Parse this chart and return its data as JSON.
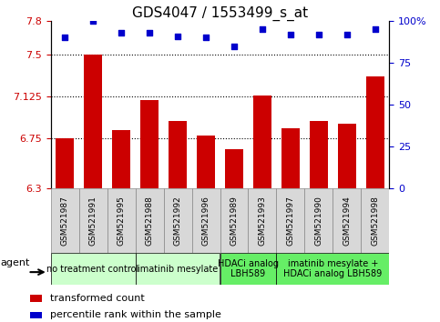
{
  "title": "GDS4047 / 1553499_s_at",
  "samples": [
    "GSM521987",
    "GSM521991",
    "GSM521995",
    "GSM521988",
    "GSM521992",
    "GSM521996",
    "GSM521989",
    "GSM521993",
    "GSM521997",
    "GSM521990",
    "GSM521994",
    "GSM521998"
  ],
  "bar_values": [
    6.75,
    7.5,
    6.82,
    7.09,
    6.9,
    6.77,
    6.65,
    7.13,
    6.84,
    6.9,
    6.88,
    7.3
  ],
  "dot_values": [
    90,
    100,
    93,
    93,
    91,
    90,
    85,
    95,
    92,
    92,
    92,
    95
  ],
  "bar_color": "#cc0000",
  "dot_color": "#0000cc",
  "ylim_left": [
    6.3,
    7.8
  ],
  "ylim_right": [
    0,
    100
  ],
  "yticks_left": [
    6.3,
    6.75,
    7.125,
    7.5,
    7.8
  ],
  "ytick_labels_left": [
    "6.3",
    "6.75",
    "7.125",
    "7.5",
    "7.8"
  ],
  "yticks_right": [
    0,
    25,
    50,
    75,
    100
  ],
  "ytick_labels_right": [
    "0",
    "25",
    "50",
    "75",
    "100%"
  ],
  "hlines": [
    6.75,
    7.125,
    7.5
  ],
  "groups": [
    {
      "label": "no treatment control",
      "start": 0,
      "end": 3,
      "color": "#ccffcc"
    },
    {
      "label": "imatinib mesylate",
      "start": 3,
      "end": 6,
      "color": "#ccffcc"
    },
    {
      "label": "HDACi analog\nLBH589",
      "start": 6,
      "end": 8,
      "color": "#66ee66"
    },
    {
      "label": "imatinib mesylate +\nHDACi analog LBH589",
      "start": 8,
      "end": 12,
      "color": "#66ee66"
    }
  ],
  "agent_label": "agent",
  "bar_bottom": 6.3,
  "title_fontsize": 11,
  "tick_fontsize": 8,
  "group_fontsize": 7,
  "sample_fontsize": 6.5,
  "legend_fontsize": 8,
  "sample_bg_color": "#d8d8d8",
  "sample_border_color": "#888888"
}
